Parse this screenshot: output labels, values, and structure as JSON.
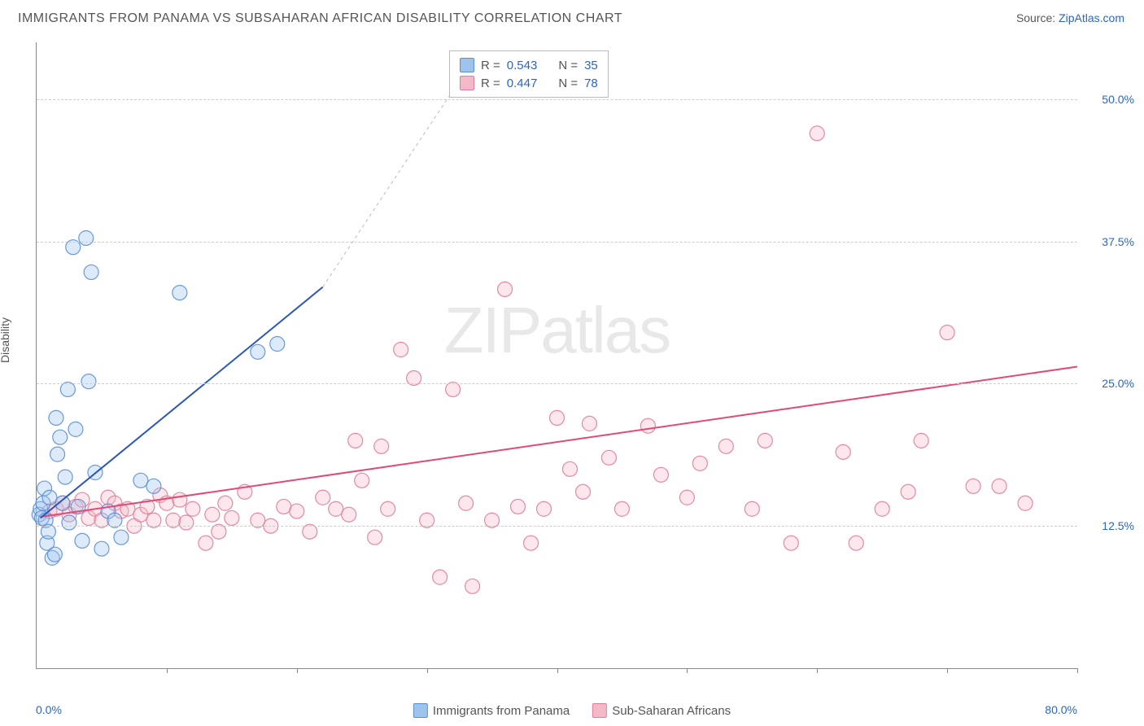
{
  "title": "IMMIGRANTS FROM PANAMA VS SUBSAHARAN AFRICAN DISABILITY CORRELATION CHART",
  "source_prefix": "Source: ",
  "source_link": "ZipAtlas.com",
  "ylabel": "Disability",
  "watermark_a": "ZIP",
  "watermark_b": "atlas",
  "chart": {
    "type": "scatter",
    "background_color": "#ffffff",
    "grid_color": "#cccccc",
    "axis_color": "#888888",
    "tick_label_color": "#2b66c4",
    "text_color": "#555555",
    "xlim": [
      0,
      80
    ],
    "ylim": [
      0,
      55
    ],
    "marker_radius": 9,
    "title_fontsize": 16,
    "label_fontsize": 14,
    "x_ticks": [
      0,
      10,
      20,
      30,
      40,
      50,
      60,
      70,
      80
    ],
    "x_start_label": "0.0%",
    "x_end_label": "80.0%",
    "y_grid": [
      {
        "v": 12.5,
        "label": "12.5%"
      },
      {
        "v": 25.0,
        "label": "25.0%"
      },
      {
        "v": 37.5,
        "label": "37.5%"
      },
      {
        "v": 50.0,
        "label": "50.0%"
      }
    ],
    "series": [
      {
        "id": "panama",
        "label": "Immigrants from Panama",
        "fill": "#9ec3ed",
        "stroke": "#5a8fd6",
        "R": "0.543",
        "N": "35",
        "regression": {
          "x1": 0.3,
          "y1": 13.2,
          "x2": 22,
          "y2": 33.5,
          "dash_x2": 33,
          "dash_y2": 52.5,
          "color": "#2b58b8",
          "width": 2
        },
        "points": [
          [
            0.2,
            13.5
          ],
          [
            0.3,
            14.0
          ],
          [
            0.4,
            13.2
          ],
          [
            0.5,
            14.5
          ],
          [
            0.6,
            15.8
          ],
          [
            0.7,
            13.0
          ],
          [
            0.8,
            11.0
          ],
          [
            0.9,
            12.0
          ],
          [
            1.0,
            15.0
          ],
          [
            1.2,
            9.7
          ],
          [
            1.4,
            10.0
          ],
          [
            1.5,
            22.0
          ],
          [
            1.6,
            18.8
          ],
          [
            1.8,
            20.3
          ],
          [
            2.0,
            14.5
          ],
          [
            2.2,
            16.8
          ],
          [
            2.4,
            24.5
          ],
          [
            2.5,
            12.8
          ],
          [
            3.0,
            21.0
          ],
          [
            3.2,
            14.2
          ],
          [
            3.5,
            11.2
          ],
          [
            4.0,
            25.2
          ],
          [
            4.5,
            17.2
          ],
          [
            5.0,
            10.5
          ],
          [
            5.5,
            13.8
          ],
          [
            6.0,
            13.0
          ],
          [
            6.5,
            11.5
          ],
          [
            8.0,
            16.5
          ],
          [
            9.0,
            16.0
          ],
          [
            11.0,
            33.0
          ],
          [
            4.2,
            34.8
          ],
          [
            2.8,
            37.0
          ],
          [
            3.8,
            37.8
          ],
          [
            17.0,
            27.8
          ],
          [
            18.5,
            28.5
          ]
        ]
      },
      {
        "id": "ssa",
        "label": "Sub-Saharan Africans",
        "fill": "#f4b9c8",
        "stroke": "#e37c9a",
        "R": "0.447",
        "N": "78",
        "regression": {
          "x1": 0.3,
          "y1": 13.3,
          "x2": 80,
          "y2": 26.5,
          "color": "#e24a76",
          "width": 2
        },
        "points": [
          [
            1.0,
            13.8
          ],
          [
            1.5,
            14.0
          ],
          [
            2.0,
            14.5
          ],
          [
            2.5,
            13.5
          ],
          [
            3.0,
            14.2
          ],
          [
            3.5,
            14.8
          ],
          [
            4.0,
            13.2
          ],
          [
            4.5,
            14.0
          ],
          [
            5.0,
            13.0
          ],
          [
            5.5,
            15.0
          ],
          [
            6.0,
            14.5
          ],
          [
            6.5,
            13.8
          ],
          [
            7.0,
            14.0
          ],
          [
            7.5,
            12.5
          ],
          [
            8.0,
            13.5
          ],
          [
            8.5,
            14.2
          ],
          [
            9.0,
            13.0
          ],
          [
            9.5,
            15.2
          ],
          [
            10.0,
            14.5
          ],
          [
            10.5,
            13.0
          ],
          [
            11.0,
            14.8
          ],
          [
            11.5,
            12.8
          ],
          [
            12.0,
            14.0
          ],
          [
            13.0,
            11.0
          ],
          [
            13.5,
            13.5
          ],
          [
            14.0,
            12.0
          ],
          [
            14.5,
            14.5
          ],
          [
            15.0,
            13.2
          ],
          [
            16.0,
            15.5
          ],
          [
            17.0,
            13.0
          ],
          [
            18.0,
            12.5
          ],
          [
            19.0,
            14.2
          ],
          [
            20.0,
            13.8
          ],
          [
            21.0,
            12.0
          ],
          [
            22.0,
            15.0
          ],
          [
            23.0,
            14.0
          ],
          [
            24.0,
            13.5
          ],
          [
            25.0,
            16.5
          ],
          [
            26.0,
            11.5
          ],
          [
            27.0,
            14.0
          ],
          [
            24.5,
            20.0
          ],
          [
            26.5,
            19.5
          ],
          [
            30.0,
            13.0
          ],
          [
            31.0,
            8.0
          ],
          [
            28.0,
            28.0
          ],
          [
            29.0,
            25.5
          ],
          [
            32.0,
            24.5
          ],
          [
            33.0,
            14.5
          ],
          [
            35.0,
            13.0
          ],
          [
            36.0,
            33.3
          ],
          [
            37.0,
            14.2
          ],
          [
            33.5,
            7.2
          ],
          [
            38.0,
            11.0
          ],
          [
            39.0,
            14.0
          ],
          [
            40.0,
            22.0
          ],
          [
            41.0,
            17.5
          ],
          [
            42.0,
            15.5
          ],
          [
            42.5,
            21.5
          ],
          [
            44.0,
            18.5
          ],
          [
            45.0,
            14.0
          ],
          [
            47.0,
            21.3
          ],
          [
            48.0,
            17.0
          ],
          [
            50.0,
            15.0
          ],
          [
            51.0,
            18.0
          ],
          [
            53.0,
            19.5
          ],
          [
            55.0,
            14.0
          ],
          [
            56.0,
            20.0
          ],
          [
            58.0,
            11.0
          ],
          [
            60.0,
            47.0
          ],
          [
            62.0,
            19.0
          ],
          [
            63.0,
            11.0
          ],
          [
            65.0,
            14.0
          ],
          [
            67.0,
            15.5
          ],
          [
            68.0,
            20.0
          ],
          [
            70.0,
            29.5
          ],
          [
            72.0,
            16.0
          ],
          [
            74.0,
            16.0
          ],
          [
            76.0,
            14.5
          ]
        ]
      }
    ]
  },
  "stats_labels": {
    "R": "R =",
    "N": "N ="
  }
}
